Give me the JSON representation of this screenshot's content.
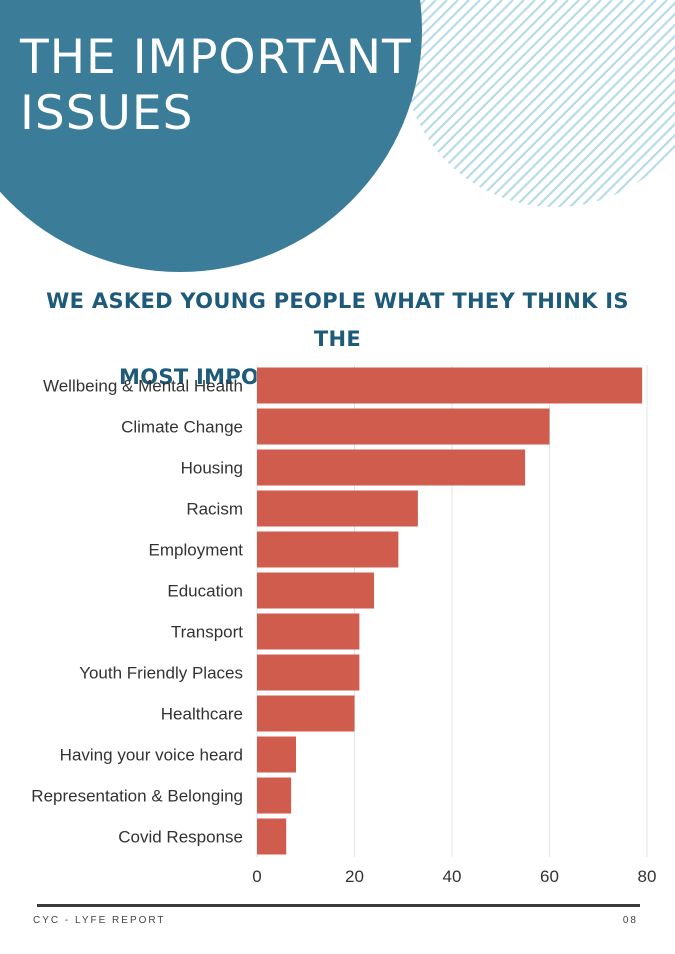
{
  "page": {
    "title_line1": "THE IMPORTANT",
    "title_line2": "ISSUES",
    "subtitle_line1": "WE ASKED YOUNG PEOPLE WHAT THEY THINK IS THE",
    "subtitle_line2": "MOST IMPORTANT ISSUE FOR THEM:",
    "footer_left": "CYC - LYFE REPORT",
    "footer_right": "08"
  },
  "colors": {
    "circle": "#3b7c99",
    "stripes": "#b7dce8",
    "bar": "#d05c4e",
    "subtitle": "#1e5a7a"
  },
  "chart_data": {
    "type": "bar",
    "orientation": "horizontal",
    "categories": [
      "Wellbeing & Mental Health",
      "Climate Change",
      "Housing",
      "Racism",
      "Employment",
      "Education",
      "Transport",
      "Youth Friendly Places",
      "Healthcare",
      "Having your voice heard",
      "Representation & Belonging",
      "Covid Response"
    ],
    "values": [
      79,
      60,
      55,
      33,
      29,
      24,
      21,
      21,
      20,
      8,
      7,
      6
    ],
    "xlim": [
      0,
      80
    ],
    "xticks": [
      0,
      20,
      40,
      60,
      80
    ],
    "grid": true,
    "legend": "none"
  }
}
